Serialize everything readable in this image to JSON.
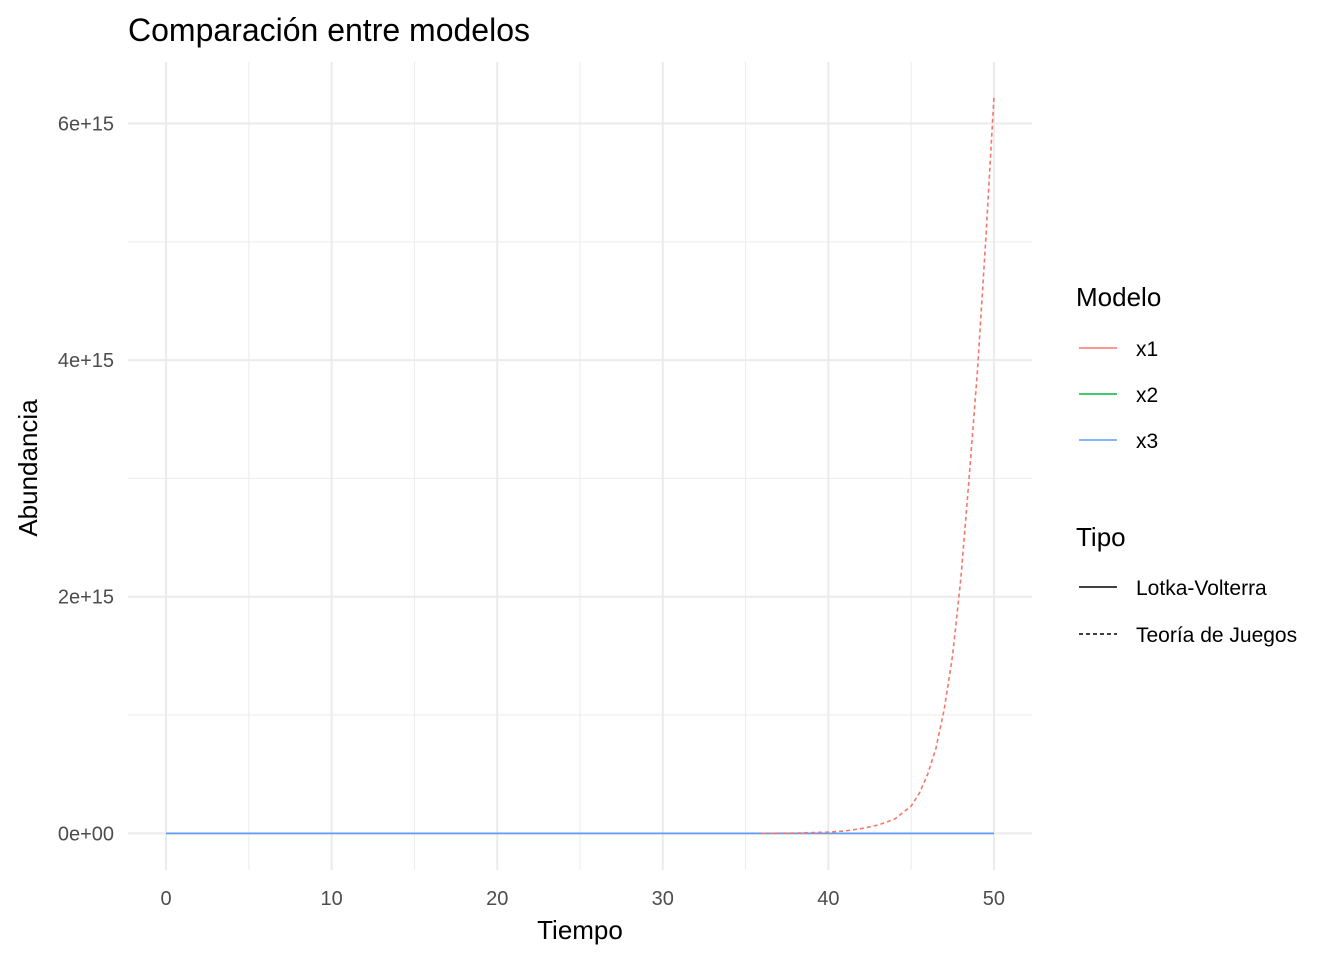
{
  "chart_data": {
    "type": "line",
    "title": "Comparación entre modelos",
    "xlabel": "Tiempo",
    "ylabel": "Abundancia",
    "xlim": [
      -2.3,
      52.3
    ],
    "ylim": [
      -310000000000000.0,
      6520000000000000.0
    ],
    "x_ticks": [
      0,
      10,
      20,
      30,
      40,
      50
    ],
    "x_tick_labels": [
      "0",
      "10",
      "20",
      "30",
      "40",
      "50"
    ],
    "y_ticks": [
      0,
      2000000000000000.0,
      4000000000000000.0,
      6000000000000000.0
    ],
    "y_tick_labels": [
      "0e+00",
      "2e+15",
      "4e+15",
      "6e+15"
    ],
    "grid": true,
    "legend_position": "right",
    "legends": [
      {
        "title": "Modelo",
        "entries": [
          {
            "label": "x1",
            "color": "#F8766D"
          },
          {
            "label": "x2",
            "color": "#00BA38"
          },
          {
            "label": "x3",
            "color": "#619CFF"
          }
        ]
      },
      {
        "title": "Tipo",
        "entries": [
          {
            "label": "Lotka-Volterra",
            "linetype": "solid"
          },
          {
            "label": "Teoría de Juegos",
            "linetype": "dashed"
          }
        ]
      }
    ],
    "series": [
      {
        "modelo": "x1",
        "tipo": "Lotka-Volterra",
        "color": "#F8766D",
        "linetype": "solid",
        "x": [
          0,
          50
        ],
        "y": [
          0,
          0
        ]
      },
      {
        "modelo": "x2",
        "tipo": "Lotka-Volterra",
        "color": "#00BA38",
        "linetype": "solid",
        "x": [
          0,
          50
        ],
        "y": [
          0,
          0
        ]
      },
      {
        "modelo": "x3",
        "tipo": "Lotka-Volterra",
        "color": "#619CFF",
        "linetype": "solid",
        "x": [
          0,
          50
        ],
        "y": [
          0,
          0
        ]
      },
      {
        "modelo": "x1",
        "tipo": "Teoría de Juegos",
        "color": "#F8766D",
        "linetype": "dashed",
        "x": [
          36,
          38,
          40,
          41,
          42,
          43,
          44,
          45,
          45.5,
          46,
          46.5,
          47,
          47.5,
          48,
          48.5,
          49,
          49.5,
          50
        ],
        "y": [
          0,
          2000000000000.0,
          10000000000000.0,
          20000000000000.0,
          40000000000000.0,
          70000000000000.0,
          120000000000000.0,
          230000000000000.0,
          340000000000000.0,
          500000000000000.0,
          720000000000000.0,
          1050000000000000.0,
          1500000000000000.0,
          2150000000000000.0,
          3000000000000000.0,
          3900000000000000.0,
          5000000000000000.0,
          6220000000000000.0
        ]
      }
    ]
  }
}
